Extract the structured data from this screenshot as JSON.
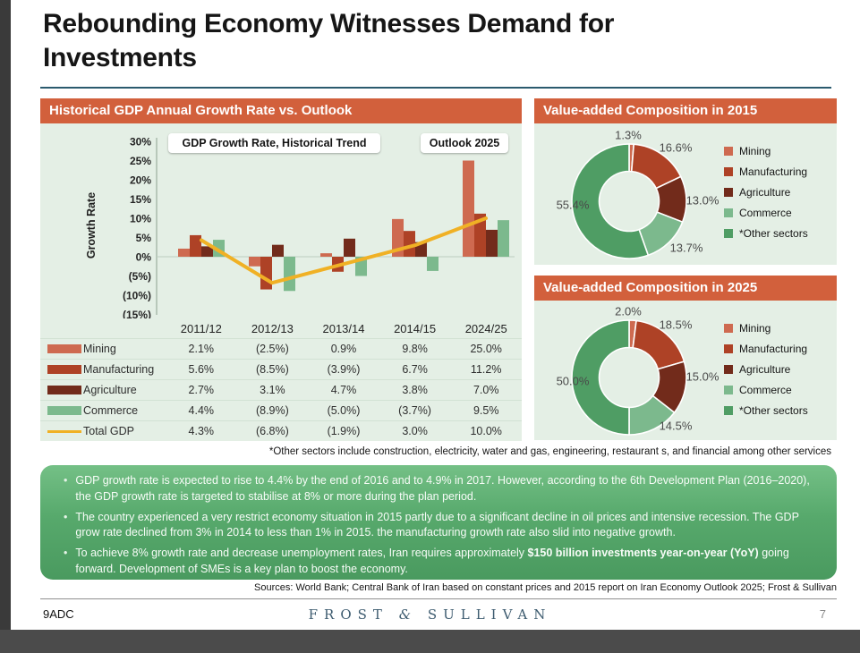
{
  "slide": {
    "title": "Rebounding Economy Witnesses Demand for\nInvestments",
    "footnote": "*Other sectors include  construction, electricity, water and gas, engineering, restaurant s, and financial among other services",
    "sources": "Sources: World Bank; Central Bank of Iran based on constant prices and 2015 report on Iran Economy Outlook 2025; Frost & Sullivan",
    "footer_left": "9ADC",
    "logo_frost": "FROST",
    "logo_amp": "&",
    "logo_sullivan": "SULLIVAN",
    "page_number": "7"
  },
  "colors": {
    "accent_orange": "#d2603c",
    "panel_background": "#e4efe5",
    "mining": "#ce6a50",
    "manufacturing": "#ae4226",
    "agriculture": "#722b1b",
    "commerce": "#7cb98d",
    "other_sectors": "#4f9d64",
    "total_gdp_line": "#f0b125",
    "insight_green_top": "#74c086",
    "insight_green_bottom": "#4a9a5f",
    "title_rule": "#2b5a6e",
    "logo_blue": "#3e5c70"
  },
  "left_panel": {
    "header": "Historical GDP Annual Growth Rate vs. Outlook",
    "chart_label_historical": "GDP Growth Rate, Historical Trend",
    "chart_label_outlook": "Outlook 2025"
  },
  "right_panels": [
    {
      "header": "Value-added Composition in 2015"
    },
    {
      "header": "Value-added Composition in 2025"
    }
  ],
  "chart_data": [
    {
      "type": "bar",
      "title": "GDP Growth Rate, Historical Trend / Outlook 2025",
      "categories": [
        "2011/12",
        "2012/13",
        "2013/14",
        "2014/15",
        "2024/25"
      ],
      "series": [
        {
          "name": "Mining",
          "type": "bar",
          "color": "#ce6a50",
          "values": [
            2.1,
            -2.5,
            0.9,
            9.8,
            25.0
          ],
          "display": [
            "2.1%",
            "(2.5%)",
            "0.9%",
            "9.8%",
            "25.0%"
          ]
        },
        {
          "name": "Manufacturing",
          "type": "bar",
          "color": "#ae4226",
          "values": [
            5.6,
            -8.5,
            -3.9,
            6.7,
            11.2
          ],
          "display": [
            "5.6%",
            "(8.5%)",
            "(3.9%)",
            "6.7%",
            "11.2%"
          ]
        },
        {
          "name": "Agriculture",
          "type": "bar",
          "color": "#722b1b",
          "values": [
            2.7,
            3.1,
            4.7,
            3.8,
            7.0
          ],
          "display": [
            "2.7%",
            "3.1%",
            "4.7%",
            "3.8%",
            "7.0%"
          ]
        },
        {
          "name": "Commerce",
          "type": "bar",
          "color": "#7cb98d",
          "values": [
            4.4,
            -8.9,
            -5.0,
            -3.7,
            9.5
          ],
          "display": [
            "4.4%",
            "(8.9%)",
            "(5.0%)",
            "(3.7%)",
            "9.5%"
          ]
        },
        {
          "name": "Total GDP",
          "type": "line",
          "color": "#f0b125",
          "values": [
            4.3,
            -6.8,
            -1.9,
            3.0,
            10.0
          ],
          "display": [
            "4.3%",
            "(6.8%)",
            "(1.9%)",
            "3.0%",
            "10.0%"
          ]
        }
      ],
      "ylabel": "Growth Rate",
      "ylim": [
        -15,
        30
      ],
      "yticks": [
        "30%",
        "25%",
        "20%",
        "15%",
        "10%",
        "5%",
        "0%",
        "(5%)",
        "(10%)",
        "(15%)"
      ],
      "grid": false,
      "legend_position": "table-left"
    },
    {
      "type": "pie",
      "subtype": "donut",
      "title": "Value-added Composition in 2015",
      "labels": [
        "Mining",
        "Manufacturing",
        "Agriculture",
        "Commerce",
        "*Other sectors"
      ],
      "values": [
        1.3,
        16.6,
        13.0,
        13.7,
        55.4
      ],
      "display": [
        "1.3%",
        "16.6%",
        "13.0%",
        "13.7%",
        "55.4%"
      ],
      "colors": [
        "#ce6a50",
        "#ae4226",
        "#722b1b",
        "#7cb98d",
        "#4f9d64"
      ],
      "legend_position": "right"
    },
    {
      "type": "pie",
      "subtype": "donut",
      "title": "Value-added Composition in 2025",
      "labels": [
        "Mining",
        "Manufacturing",
        "Agriculture",
        "Commerce",
        "*Other sectors"
      ],
      "values": [
        2.0,
        18.5,
        15.0,
        14.5,
        50.0
      ],
      "display": [
        "2.0%",
        "18.5%",
        "15.0%",
        "14.5%",
        "50.0%"
      ],
      "colors": [
        "#ce6a50",
        "#ae4226",
        "#722b1b",
        "#7cb98d",
        "#4f9d64"
      ],
      "legend_position": "right"
    }
  ],
  "insights": {
    "bullets": [
      {
        "text": "GDP growth rate is expected to rise to 4.4%  by the end of 2016 and to 4.9% in 2017. However, according to the 6th Development Plan (2016–2020), the GDP growth rate is targeted  to stabilise at 8% or more during the plan period."
      },
      {
        "text": "The country experienced a very restrict economy situation in 2015 partly due to a significant decline in oil prices and intensive recession. The GDP grow rate declined from 3%  in 2014 to less than 1% in 2015. the manufacturing growth rate also slid into negative growth."
      },
      {
        "prefix": "To achieve 8% growth rate and decrease unemployment rates, Iran requires approximately ",
        "bold": "$150 billion investments year-on-year (YoY)",
        "suffix": " going forward. Development of SMEs is a key plan to boost the economy."
      }
    ]
  }
}
